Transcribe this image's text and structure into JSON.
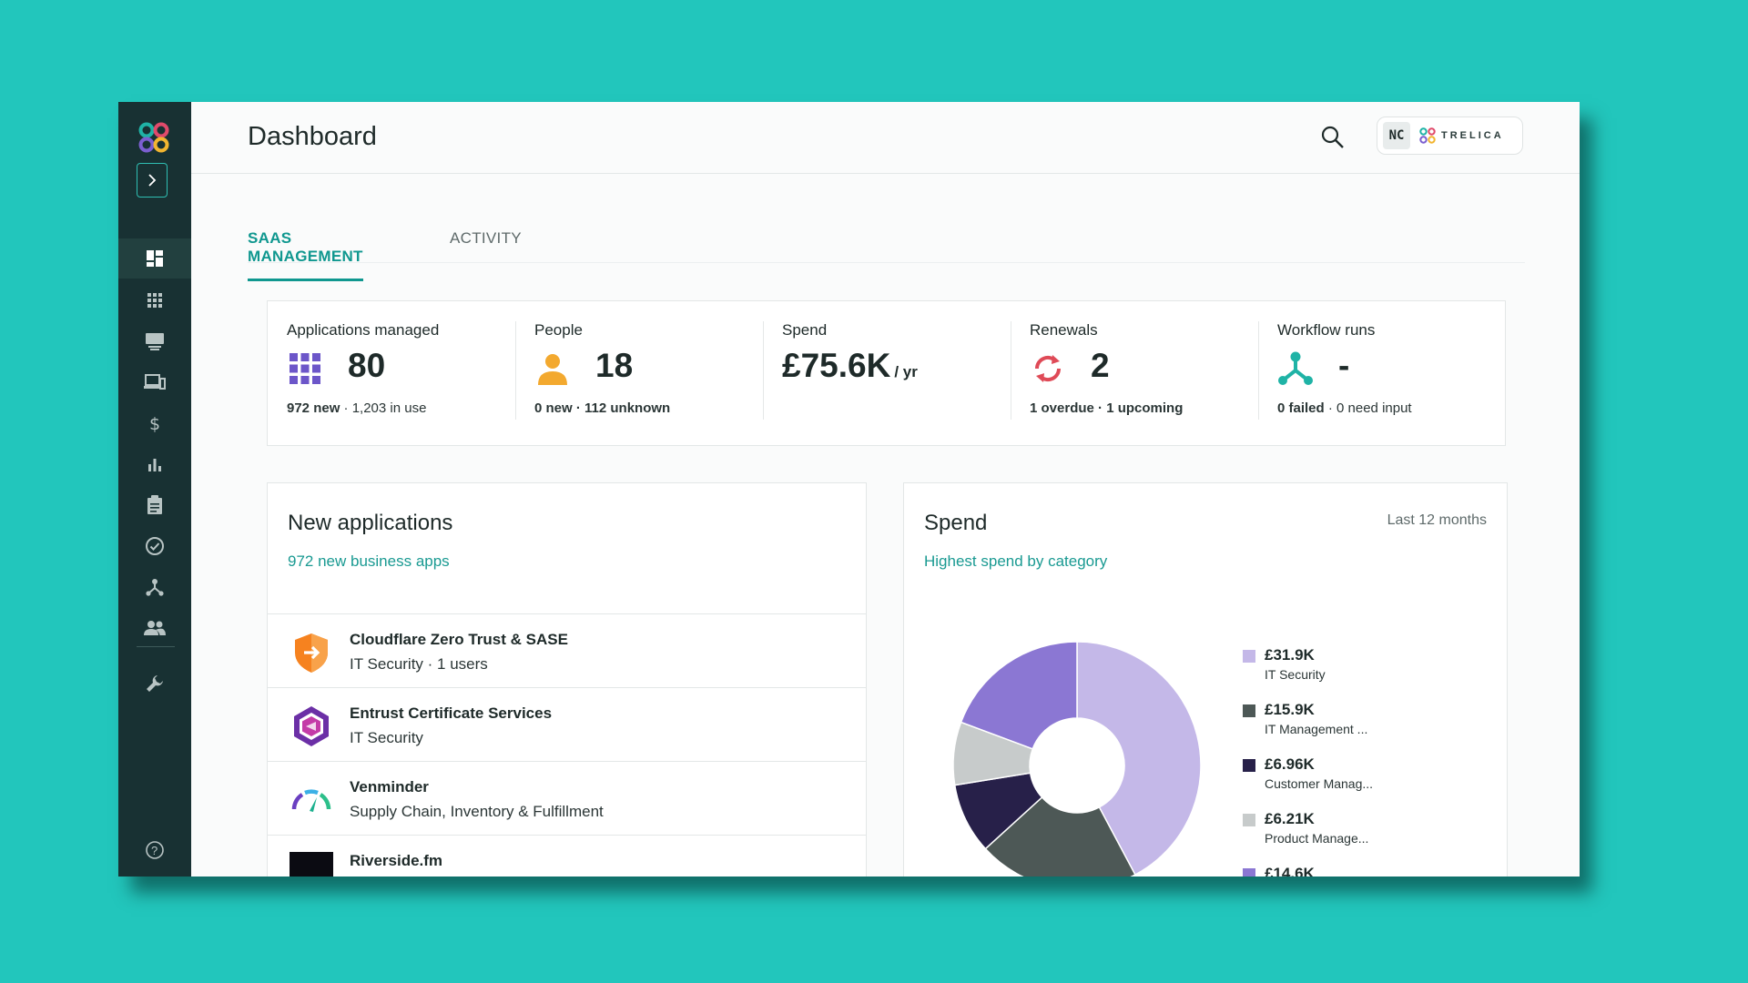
{
  "header": {
    "title": "Dashboard",
    "account_initials": "NC",
    "org_name": "TRELICA"
  },
  "tabs": [
    {
      "label": "SAAS MANAGEMENT",
      "active": true
    },
    {
      "label": "ACTIVITY",
      "active": false
    }
  ],
  "stats": {
    "apps": {
      "label": "Applications managed",
      "value": "80",
      "sub_bold": "972 new",
      "sub_rest": " · 1,203 in use",
      "icon": "grid-apps-icon"
    },
    "people": {
      "label": "People",
      "value": "18",
      "sub_bold": "0 new · 112 unknown",
      "sub_rest": "",
      "icon": "person-icon"
    },
    "spend": {
      "label": "Spend",
      "value": "£75.6K",
      "unit": "/ yr"
    },
    "renewals": {
      "label": "Renewals",
      "value": "2",
      "sub_bold": "1 overdue · 1 upcoming",
      "sub_rest": "",
      "icon": "renew-icon"
    },
    "workflows": {
      "label": "Workflow runs",
      "value": "-",
      "sub_bold": "0 failed",
      "sub_rest": " · 0 need input",
      "icon": "workflow-icon"
    }
  },
  "new_apps": {
    "title": "New applications",
    "link": "972 new business apps",
    "items": [
      {
        "name": "Cloudflare Zero Trust & SASE",
        "sub": "IT Security · 1 users",
        "icon": "cloudflare-shield-icon"
      },
      {
        "name": "Entrust Certificate Services",
        "sub": "IT Security",
        "icon": "entrust-hexagon-icon"
      },
      {
        "name": "Venminder",
        "sub": "Supply Chain, Inventory & Fulfillment",
        "icon": "venminder-gauge-icon"
      },
      {
        "name": "Riverside.fm",
        "sub": "",
        "icon": "riverside-icon"
      }
    ]
  },
  "spend_card": {
    "title": "Spend",
    "period": "Last 12 months",
    "link": "Highest spend by category"
  },
  "chart_data": {
    "type": "pie",
    "donut": true,
    "series": [
      {
        "name": "IT Security",
        "label": "£31.9K",
        "value": 31.9,
        "color": "#c4b8e8"
      },
      {
        "name": "IT Management ...",
        "label": "£15.9K",
        "value": 15.9,
        "color": "#4d5856"
      },
      {
        "name": "Customer Manag...",
        "label": "£6.96K",
        "value": 6.96,
        "color": "#272049"
      },
      {
        "name": "Product Manage...",
        "label": "£6.21K",
        "value": 6.21,
        "color": "#c7cbcb"
      },
      {
        "name": "",
        "label": "£14.6K",
        "value": 14.6,
        "color": "#8b77d3"
      }
    ]
  },
  "colors": {
    "accent": "#0f978f",
    "sidebar": "#183133",
    "background": "#22c6bc"
  }
}
